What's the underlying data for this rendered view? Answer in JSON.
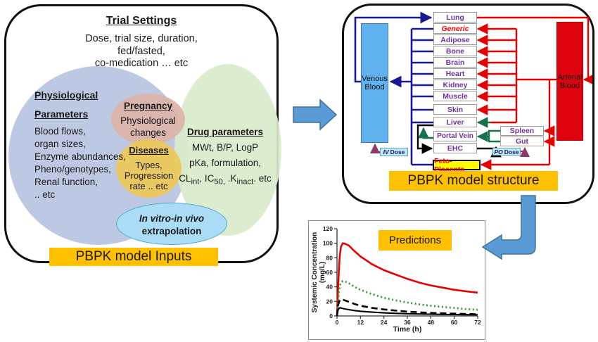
{
  "left_panel": {
    "title": "Trial Settings",
    "subtitle_lines": [
      "Dose, trial size, duration,",
      "fed/fasted,",
      "co-medication  … etc"
    ],
    "physiological": {
      "title_line1": "Physiological",
      "title_line2": "Parameters",
      "items": [
        "Blood flows,",
        "organ sizes,",
        "Enzyme abundances,",
        "Pheno/genotypes,",
        "Renal function,",
        ".. etc"
      ]
    },
    "pregnancy": {
      "title": "Pregnancy",
      "lines": [
        "Physiological",
        "changes"
      ]
    },
    "diseases": {
      "title": "Diseases",
      "lines": [
        "Types,",
        "Progression",
        "rate .. etc"
      ]
    },
    "drug": {
      "title": "Drug parameters",
      "line1": "MWt, B/P, LogP",
      "line2": "pKa, formulation,",
      "line3_segments": [
        {
          "t": "CL"
        },
        {
          "t": "int",
          "sub": true
        },
        {
          "t": ", IC"
        },
        {
          "t": "50,",
          "sub": true
        },
        {
          "t": " .K"
        },
        {
          "t": "inact",
          "sub": true
        },
        {
          "t": ". etc"
        }
      ]
    },
    "ivive": {
      "line1": "In vitro-in vivo",
      "line2": "extrapolation"
    },
    "footer": "PBPK model Inputs"
  },
  "right_panel": {
    "venous_label": "Venous Blood",
    "arterial_label": "Arterial Blood",
    "organs": [
      "Lung",
      "Generic",
      "Adipose",
      "Bone",
      "Brain",
      "Heart",
      "Kidney",
      "Muscle",
      "Skin",
      "Liver",
      "Portal Vein",
      "EHC"
    ],
    "spleen": "Spleen",
    "gut": "Gut",
    "feto": "Feto-Placenta",
    "iv_dose_prefix": "IV",
    "iv_dose_word": "Dose",
    "po_dose_prefix": "PO",
    "po_dose_word": "Dose",
    "footer": "PBPK model structure"
  },
  "colors": {
    "accent_orange": "#FFC000",
    "venous_blue": "#5FB2EE",
    "arterial_red": "#DF0310",
    "organ_text_purple": "#7030A0",
    "line_blue": "#191998",
    "line_red": "#E60000",
    "line_green": "#15724C",
    "line_purple": "#90376B",
    "big_arrow_blue": "#5B9BD5"
  },
  "chart_data": {
    "type": "line",
    "title": "Predictions",
    "xlabel": "Time (h)",
    "ylabel_lines": [
      "Systemic Concentration",
      "(mg/L)"
    ],
    "xlim": [
      0,
      72
    ],
    "ylim": [
      0,
      120
    ],
    "xticks": [
      0,
      12,
      24,
      36,
      48,
      60,
      72
    ],
    "yticks": [
      0,
      20,
      40,
      60,
      80,
      100,
      120
    ],
    "grid": false,
    "legend": false,
    "x_shared": [
      0,
      0.5,
      1,
      1.5,
      2,
      3,
      4,
      6,
      9,
      12,
      18,
      24,
      30,
      36,
      42,
      48,
      54,
      60,
      66,
      72
    ],
    "series": [
      {
        "name": "red-solid",
        "color": "#E60000",
        "style": "solid",
        "width": 2.6,
        "y": [
          0,
          35,
          65,
          85,
          95,
          100,
          99.5,
          97,
          89,
          82,
          71,
          63,
          57,
          51,
          46,
          42,
          39,
          36,
          34,
          32
        ]
      },
      {
        "name": "green-dotted",
        "color": "#2FA12E",
        "style": "dotted",
        "width": 2.8,
        "y": [
          0,
          18,
          33,
          42,
          46,
          48,
          47.5,
          45,
          40,
          36,
          30,
          25,
          21.5,
          18.5,
          16,
          14,
          12.5,
          11,
          9.5,
          8.5
        ]
      },
      {
        "name": "black-dashed",
        "color": "#000000",
        "style": "dashed",
        "width": 2.6,
        "y": [
          0,
          14,
          19,
          22,
          23,
          22.5,
          21.5,
          19.5,
          16.5,
          14,
          11,
          9,
          7.5,
          6,
          5,
          4.3,
          3.7,
          3.2,
          2.7,
          2.3
        ]
      },
      {
        "name": "black-solid",
        "color": "#000000",
        "style": "solid",
        "width": 2.1,
        "y": [
          0,
          8,
          10.5,
          11.2,
          11,
          10.3,
          9.7,
          8.7,
          7.5,
          6.5,
          5.2,
          4.3,
          3.6,
          3.1,
          2.7,
          2.4,
          2.1,
          1.9,
          1.7,
          1.6
        ]
      }
    ]
  }
}
